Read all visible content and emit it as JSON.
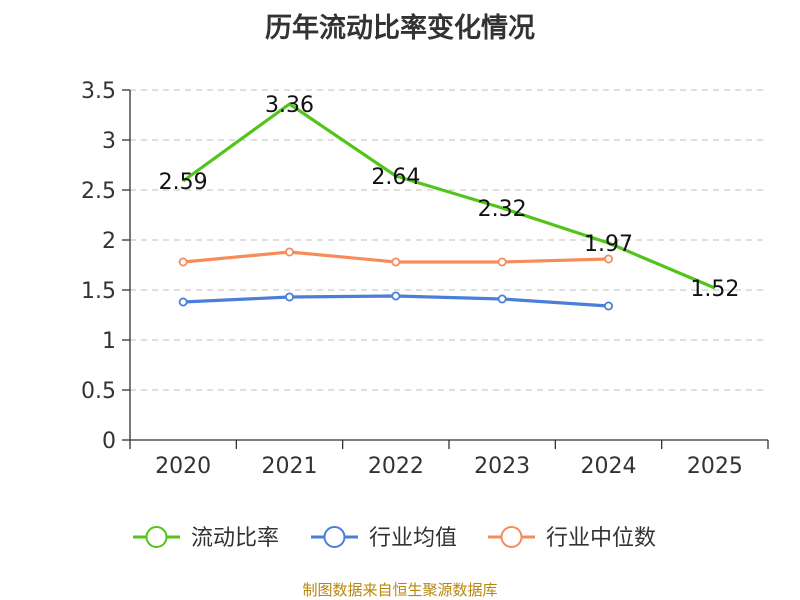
{
  "title": "历年流动比率变化情况",
  "source": "制图数据来自恒生聚源数据库",
  "chart_data": {
    "type": "line",
    "title": "历年流动比率变化情况",
    "categories": [
      "2020",
      "2021",
      "2022",
      "2023",
      "2024",
      "2025"
    ],
    "ylim": [
      0,
      3.5
    ],
    "yticks": [
      "0",
      "0.5",
      "1",
      "1.5",
      "2",
      "2.5",
      "3",
      "3.5"
    ],
    "grid": true,
    "legend_position": "bottom",
    "series": [
      {
        "name": "流动比率",
        "color": "#52c41a",
        "values": [
          2.59,
          3.36,
          2.64,
          2.32,
          1.97,
          1.52
        ],
        "labels": [
          "2.59",
          "3.36",
          "2.64",
          "2.32",
          "1.97",
          "1.52"
        ],
        "show_points": false
      },
      {
        "name": "行业均值",
        "color": "#4a7fd9",
        "values": [
          1.38,
          1.43,
          1.44,
          1.41,
          1.34,
          null
        ],
        "show_points": true
      },
      {
        "name": "行业中位数",
        "color": "#f78c5a",
        "values": [
          1.78,
          1.88,
          1.78,
          1.78,
          1.81,
          null
        ],
        "show_points": true
      }
    ]
  }
}
